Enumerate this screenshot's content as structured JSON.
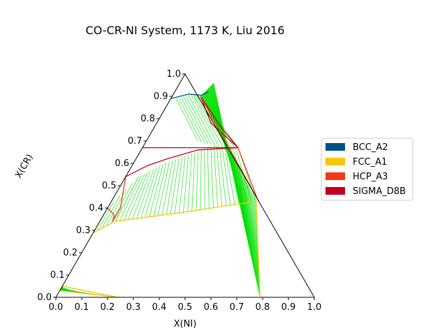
{
  "chart_data": {
    "type": "ternary",
    "title": "CO-CR-NI System, 1173 K, Liu 2016",
    "xlabel": "X(NI)",
    "ylabel": "X(CR)",
    "xlim": [
      0,
      1
    ],
    "ylim": [
      0,
      1
    ],
    "x_ticks": [
      "0.0",
      "0.1",
      "0.2",
      "0.3",
      "0.4",
      "0.5",
      "0.6",
      "0.7",
      "0.8",
      "0.9",
      "1.0"
    ],
    "y_ticks": [
      "0.0",
      "0.1",
      "0.2",
      "0.3",
      "0.4",
      "0.5",
      "0.6",
      "0.7",
      "0.8",
      "0.9",
      "1.0"
    ],
    "legend": {
      "placement": "right",
      "entries": [
        {
          "label": "BCC_A2",
          "color": "#00538a"
        },
        {
          "label": "FCC_A1",
          "color": "#f4c800"
        },
        {
          "label": "HCP_A3",
          "color": "#f13a13"
        },
        {
          "label": "SIGMA_D8B",
          "color": "#c10020"
        }
      ]
    },
    "tie_line_color": "#00e000",
    "tie_line_regions": [
      {
        "name": "bcc-fcc",
        "side_a": [
          [
            0.02,
            0.96
          ],
          [
            0.02,
            0.67
          ]
        ],
        "side_b": [
          [
            0.56,
            0.44
          ],
          [
            0.57,
            0.43
          ]
        ],
        "count": 0
      },
      {
        "name": "bcc-sigma",
        "side_a": [
          [
            0.02,
            0.89
          ],
          [
            0.07,
            0.91
          ],
          [
            0.11,
            0.9
          ]
        ],
        "side_b": [
          [
            0.2,
            0.7
          ],
          [
            0.27,
            0.68
          ],
          [
            0.37,
            0.67
          ]
        ],
        "count": 12
      },
      {
        "name": "bcc-fcc-right",
        "side_a": [
          [
            0.13,
            0.96
          ],
          [
            0.11,
            0.9
          ]
        ],
        "side_b": [
          [
            0.79,
            0.0
          ],
          [
            0.56,
            0.43
          ]
        ],
        "count": 40
      },
      {
        "name": "sigma-fcc",
        "side_a": [
          [
            0.05,
            0.54
          ],
          [
            0.12,
            0.6
          ],
          [
            0.27,
            0.68
          ],
          [
            0.37,
            0.67
          ]
        ],
        "side_b": [
          [
            0.06,
            0.34
          ],
          [
            0.3,
            0.38
          ],
          [
            0.56,
            0.43
          ]
        ],
        "count": 34
      },
      {
        "name": "sigma-fcc-left",
        "side_a": [
          [
            0.0,
            0.4
          ],
          [
            0.05,
            0.54
          ]
        ],
        "side_b": [
          [
            0.0,
            0.29
          ],
          [
            0.06,
            0.34
          ]
        ],
        "count": 6
      },
      {
        "name": "hcp-fcc",
        "side_a": [
          [
            0.0,
            0.03
          ],
          [
            0.0,
            0.05
          ]
        ],
        "side_b": [
          [
            0.24,
            0.0
          ],
          [
            0.0,
            0.03
          ]
        ],
        "count": 18
      }
    ],
    "boundaries": [
      {
        "phase": "BCC_A2",
        "color": "#00538a",
        "points": [
          [
            0.0,
            0.89
          ],
          [
            0.06,
            0.91
          ],
          [
            0.11,
            0.905
          ],
          [
            0.13,
            0.92
          ]
        ]
      },
      {
        "phase": "SIGMA_D8B",
        "color": "#c10020",
        "points": [
          [
            0.0,
            0.67
          ],
          [
            0.12,
            0.67
          ],
          [
            0.21,
            0.67
          ],
          [
            0.37,
            0.67
          ]
        ]
      },
      {
        "phase": "SIGMA_D8B",
        "color": "#c10020",
        "points": [
          [
            0.0,
            0.54
          ],
          [
            0.06,
            0.59
          ],
          [
            0.12,
            0.62
          ],
          [
            0.22,
            0.66
          ],
          [
            0.37,
            0.67
          ]
        ]
      },
      {
        "phase": "SIGMA_D8B",
        "color": "#c10020",
        "points": [
          [
            0.11,
            0.9
          ],
          [
            0.21,
            0.78
          ],
          [
            0.37,
            0.67
          ]
        ]
      },
      {
        "phase": "SIGMA_D8B",
        "color": "#c10020",
        "points": [
          [
            0.11,
            0.9
          ],
          [
            0.26,
            0.76
          ],
          [
            0.37,
            0.67
          ]
        ]
      },
      {
        "phase": "HCP_A3",
        "color": "#f13a13",
        "points": [
          [
            0.37,
            0.67
          ],
          [
            0.56,
            0.44
          ],
          [
            0.57,
            0.43
          ]
        ]
      },
      {
        "phase": "HCP_A3",
        "color": "#f13a13",
        "points": [
          [
            0.11,
            0.9
          ],
          [
            0.56,
            0.44
          ]
        ]
      },
      {
        "phase": "HCP_A3",
        "color": "#f13a13",
        "points": [
          [
            0.0,
            0.54
          ],
          [
            0.05,
            0.4
          ],
          [
            0.05,
            0.34
          ]
        ]
      },
      {
        "phase": "HCP_A3",
        "color": "#f13a13",
        "points": [
          [
            0.0,
            0.4
          ],
          [
            0.04,
            0.37
          ],
          [
            0.05,
            0.34
          ]
        ]
      },
      {
        "phase": "FCC_A1",
        "color": "#f4c800",
        "points": [
          [
            0.06,
            0.34
          ],
          [
            0.3,
            0.38
          ],
          [
            0.56,
            0.43
          ]
        ]
      },
      {
        "phase": "FCC_A1",
        "color": "#f4c800",
        "points": [
          [
            0.56,
            0.43
          ],
          [
            0.79,
            0.0
          ]
        ]
      },
      {
        "phase": "FCC_A1",
        "color": "#f4c800",
        "points": [
          [
            0.0,
            0.29
          ],
          [
            0.06,
            0.34
          ]
        ]
      },
      {
        "phase": "FCC_A1",
        "color": "#f4c800",
        "points": [
          [
            0.0,
            0.05
          ],
          [
            0.24,
            0.0
          ]
        ]
      },
      {
        "phase": "FCC_A1",
        "color": "#f4c800",
        "points": [
          [
            0.0,
            0.03
          ],
          [
            0.24,
            0.0
          ]
        ]
      }
    ]
  }
}
